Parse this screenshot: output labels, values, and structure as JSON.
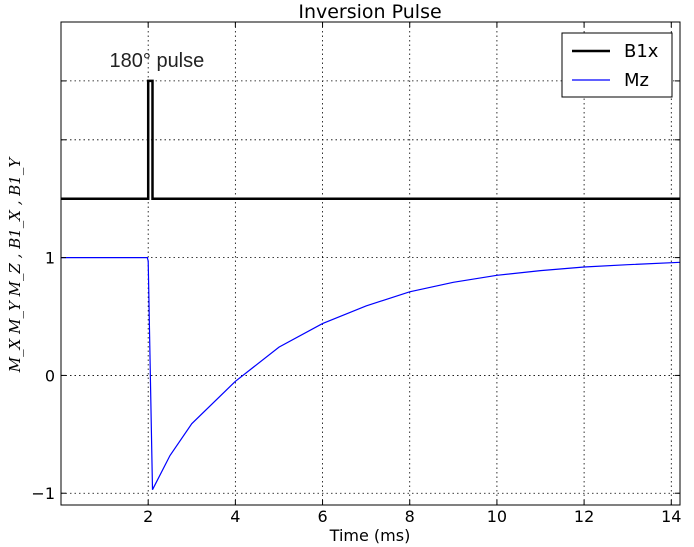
{
  "chart_data": {
    "type": "line",
    "title": "Inversion Pulse",
    "xlabel": "Time (ms)",
    "ylabel": "M_X  M_Y  M_Z ,  B1_X ,  B1_Y",
    "xlim": [
      0,
      14.2
    ],
    "ylim": [
      -1.1,
      3.0
    ],
    "grid": true,
    "legend_position": "top-right",
    "x_ticks": [
      2,
      4,
      6,
      8,
      10,
      12,
      14
    ],
    "x_tick_labels": [
      "2",
      "4",
      "6",
      "8",
      "10",
      "12",
      "14"
    ],
    "y_ticks": [
      -1,
      0,
      1
    ],
    "y_tick_labels": [
      "−1",
      "0",
      "1"
    ],
    "y_extra_gridlines": [
      2,
      2.5,
      3
    ],
    "annotation": {
      "text": "180° pulse",
      "x": 2.2,
      "y": 2.62
    },
    "series": [
      {
        "name": "B1x",
        "color": "#000000",
        "line_width": 2.5,
        "x": [
          0,
          1.99,
          2.0,
          2.0,
          2.1,
          2.1,
          14.2
        ],
        "y": [
          1.5,
          1.5,
          1.5,
          2.5,
          2.5,
          1.5,
          1.5
        ]
      },
      {
        "name": "Mz",
        "color": "#0000ff",
        "line_width": 1.2,
        "x": [
          0,
          1.98,
          2.0,
          2.1,
          2.5,
          3,
          4,
          5,
          6,
          7,
          8,
          9,
          10,
          11,
          12,
          13,
          14.2
        ],
        "y": [
          1.0,
          1.0,
          0.97,
          -0.97,
          -0.68,
          -0.41,
          -0.05,
          0.24,
          0.44,
          0.59,
          0.71,
          0.79,
          0.85,
          0.89,
          0.92,
          0.94,
          0.96
        ]
      }
    ]
  }
}
